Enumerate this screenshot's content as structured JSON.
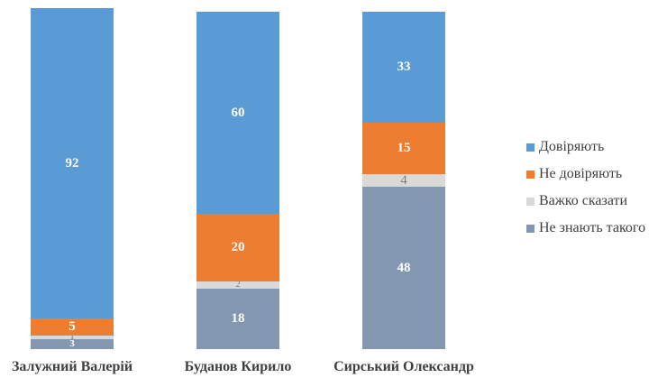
{
  "chart_data": {
    "type": "bar",
    "stacked": true,
    "categories": [
      "Залужний Валерій",
      "Буданов Кирило",
      "Сирський Олександр"
    ],
    "series": [
      {
        "name": "Довіряють",
        "color": "#5b9bd5",
        "values": [
          92,
          60,
          33
        ]
      },
      {
        "name": "Не довіряють",
        "color": "#ed7d31",
        "values": [
          5,
          20,
          15
        ]
      },
      {
        "name": "Важко сказати",
        "color": "#d9d9d9",
        "values": [
          1,
          2,
          4
        ]
      },
      {
        "name": "Не знають такого",
        "color": "#8497b0",
        "values": [
          3,
          18,
          48
        ]
      }
    ],
    "title": "",
    "xlabel": "",
    "ylabel": "",
    "ylim": [
      0,
      100
    ],
    "grid": false,
    "legend_position": "right"
  }
}
